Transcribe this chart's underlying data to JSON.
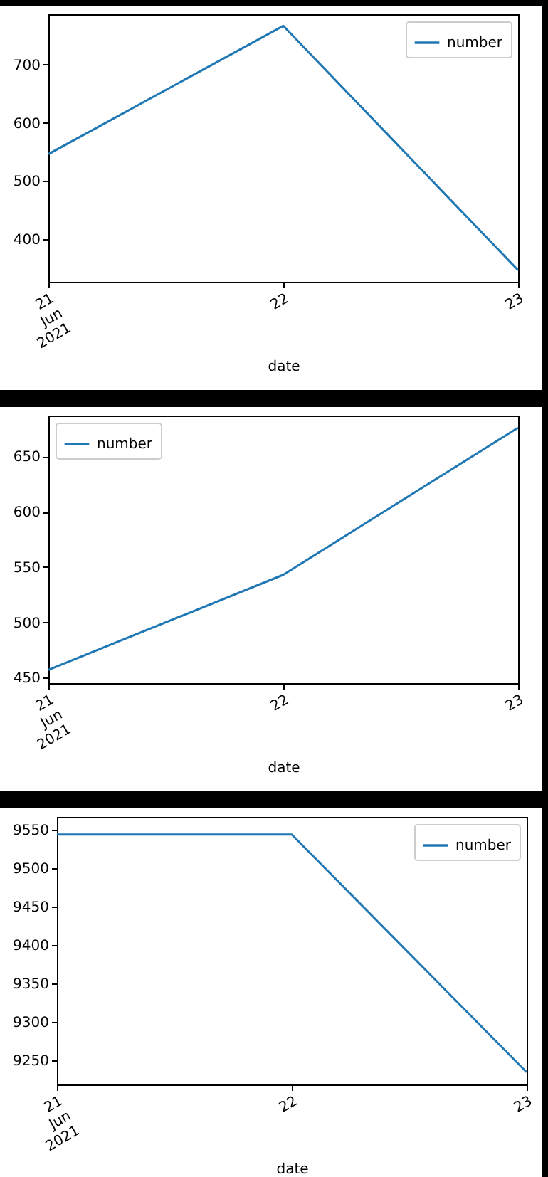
{
  "chart_data": [
    {
      "type": "line",
      "x": [
        "2021-06-21",
        "2021-06-22",
        "2021-06-23"
      ],
      "series": [
        {
          "name": "number",
          "color": "#1f77b4",
          "values": [
            546,
            767,
            346
          ]
        }
      ],
      "xlabel": "date",
      "xlim": [
        "2021-06-21",
        "2021-06-23"
      ],
      "xticks": [
        {
          "value": "2021-06-21",
          "label": "21\nJun\n2021"
        },
        {
          "value": "2021-06-22",
          "label": "22"
        },
        {
          "value": "2021-06-23",
          "label": "23"
        }
      ],
      "ylim": [
        326,
        787
      ],
      "yticks": [
        400,
        500,
        600,
        700
      ],
      "legend": "top right",
      "grid": false
    },
    {
      "type": "line",
      "x": [
        "2021-06-21",
        "2021-06-22",
        "2021-06-23"
      ],
      "series": [
        {
          "name": "number",
          "color": "#1f77b4",
          "values": [
            457,
            543,
            676
          ]
        }
      ],
      "xlabel": "date",
      "xlim": [
        "2021-06-21",
        "2021-06-23"
      ],
      "xticks": [
        {
          "value": "2021-06-21",
          "label": "21\nJun\n2021"
        },
        {
          "value": "2021-06-22",
          "label": "22"
        },
        {
          "value": "2021-06-23",
          "label": "23"
        }
      ],
      "ylim": [
        445,
        687
      ],
      "yticks": [
        450,
        500,
        550,
        600,
        650
      ],
      "legend": "top left",
      "grid": false
    },
    {
      "type": "line",
      "x": [
        "2021-06-21",
        "2021-06-22",
        "2021-06-23"
      ],
      "series": [
        {
          "name": "number",
          "color": "#1f77b4",
          "values": [
            9544,
            9544,
            9234
          ]
        }
      ],
      "xlabel": "date",
      "xlim": [
        "2021-06-21",
        "2021-06-23"
      ],
      "xticks": [
        {
          "value": "2021-06-21",
          "label": "21\nJun\n2021"
        },
        {
          "value": "2021-06-22",
          "label": "22"
        },
        {
          "value": "2021-06-23",
          "label": "23"
        }
      ],
      "ylim": [
        9218,
        9567
      ],
      "yticks": [
        9250,
        9300,
        9350,
        9400,
        9450,
        9500,
        9550
      ],
      "legend": "top right",
      "grid": false
    }
  ]
}
